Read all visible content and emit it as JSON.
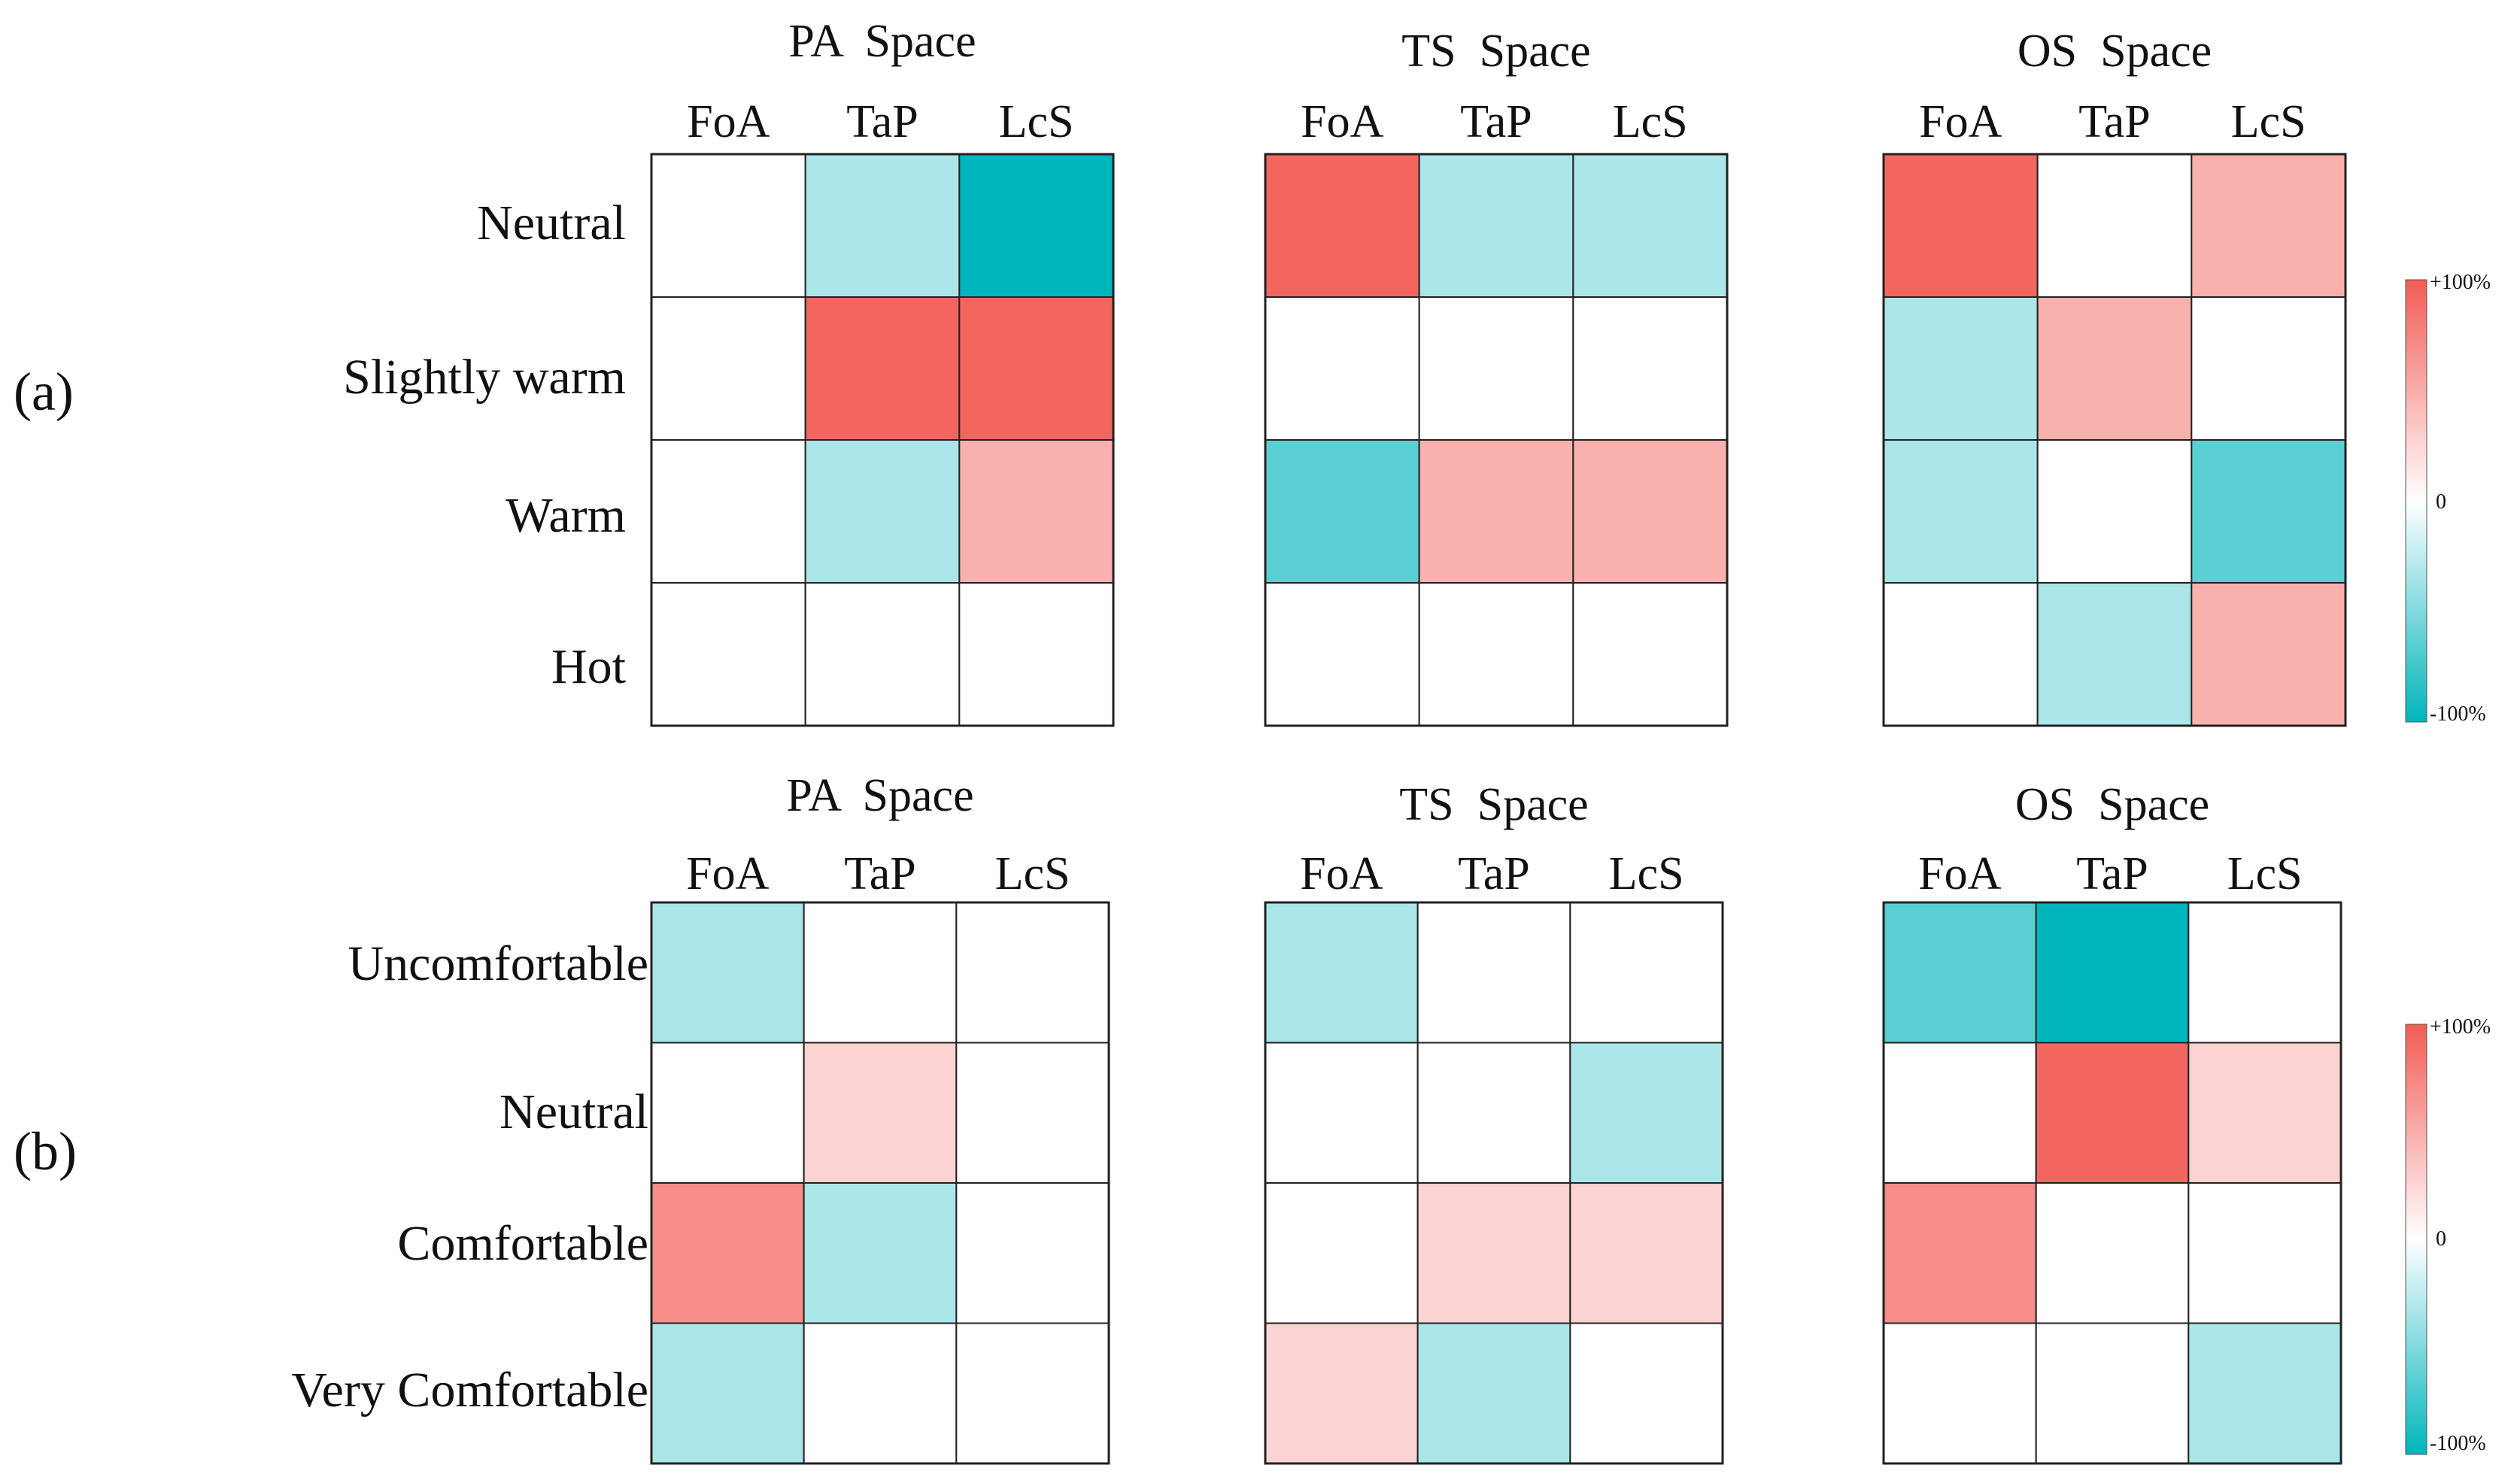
{
  "figure": {
    "panels": [
      {
        "id": "a",
        "label": "(a)",
        "row_labels": [
          "Neutral",
          "Slightly warm",
          "Warm",
          "Hot"
        ]
      },
      {
        "id": "b",
        "label": "(b)",
        "row_labels": [
          "Uncomfortable",
          "Neutral",
          "Comfortable",
          "Very Comfortable"
        ]
      }
    ],
    "colorbar": {
      "max_label": "+100%",
      "mid_label": "0",
      "min_label": "-100%"
    },
    "colors": {
      "positive": "#F25C55",
      "negative": "#00B5BB",
      "zero": "#FFFFFF"
    }
  },
  "chart_data": [
    {
      "type": "heatmap",
      "panel": "(a)",
      "title": "PA  Space",
      "columns": [
        "FoA",
        "TaP",
        "LcS"
      ],
      "rows": [
        "Neutral",
        "Slightly warm",
        "Warm",
        "Hot"
      ],
      "values": [
        [
          0,
          -33,
          -100
        ],
        [
          0,
          94,
          94
        ],
        [
          0,
          -33,
          48
        ],
        [
          0,
          0,
          0
        ]
      ],
      "range": [
        -100,
        100
      ]
    },
    {
      "type": "heatmap",
      "panel": "(a)",
      "title": "TS  Space",
      "columns": [
        "FoA",
        "TaP",
        "LcS"
      ],
      "rows": [
        "Neutral",
        "Slightly warm",
        "Warm",
        "Hot"
      ],
      "values": [
        [
          94,
          -33,
          -33
        ],
        [
          0,
          0,
          0
        ],
        [
          -65,
          48,
          48
        ],
        [
          0,
          0,
          0
        ]
      ],
      "range": [
        -100,
        100
      ]
    },
    {
      "type": "heatmap",
      "panel": "(a)",
      "title": "OS  Space",
      "columns": [
        "FoA",
        "TaP",
        "LcS"
      ],
      "rows": [
        "Neutral",
        "Slightly warm",
        "Warm",
        "Hot"
      ],
      "values": [
        [
          94,
          0,
          48
        ],
        [
          -33,
          48,
          0
        ],
        [
          -33,
          0,
          -65
        ],
        [
          0,
          -33,
          48
        ]
      ],
      "range": [
        -100,
        100
      ]
    },
    {
      "type": "heatmap",
      "panel": "(b)",
      "title": "PA  Space",
      "columns": [
        "FoA",
        "TaP",
        "LcS"
      ],
      "rows": [
        "Uncomfortable",
        "Neutral",
        "Comfortable",
        "Very Comfortable"
      ],
      "values": [
        [
          -33,
          0,
          0
        ],
        [
          0,
          27,
          0
        ],
        [
          70,
          -33,
          0
        ],
        [
          -33,
          0,
          0
        ]
      ],
      "range": [
        -100,
        100
      ]
    },
    {
      "type": "heatmap",
      "panel": "(b)",
      "title": "TS  Space",
      "columns": [
        "FoA",
        "TaP",
        "LcS"
      ],
      "rows": [
        "Uncomfortable",
        "Neutral",
        "Comfortable",
        "Very Comfortable"
      ],
      "values": [
        [
          -33,
          0,
          0
        ],
        [
          0,
          0,
          -33
        ],
        [
          0,
          27,
          27
        ],
        [
          27,
          -33,
          0
        ]
      ],
      "range": [
        -100,
        100
      ]
    },
    {
      "type": "heatmap",
      "panel": "(b)",
      "title": "OS  Space",
      "columns": [
        "FoA",
        "TaP",
        "LcS"
      ],
      "rows": [
        "Uncomfortable",
        "Neutral",
        "Comfortable",
        "Very Comfortable"
      ],
      "values": [
        [
          -65,
          -100,
          0
        ],
        [
          0,
          94,
          27
        ],
        [
          70,
          0,
          0
        ],
        [
          0,
          0,
          -33
        ]
      ],
      "range": [
        -100,
        100
      ]
    }
  ]
}
